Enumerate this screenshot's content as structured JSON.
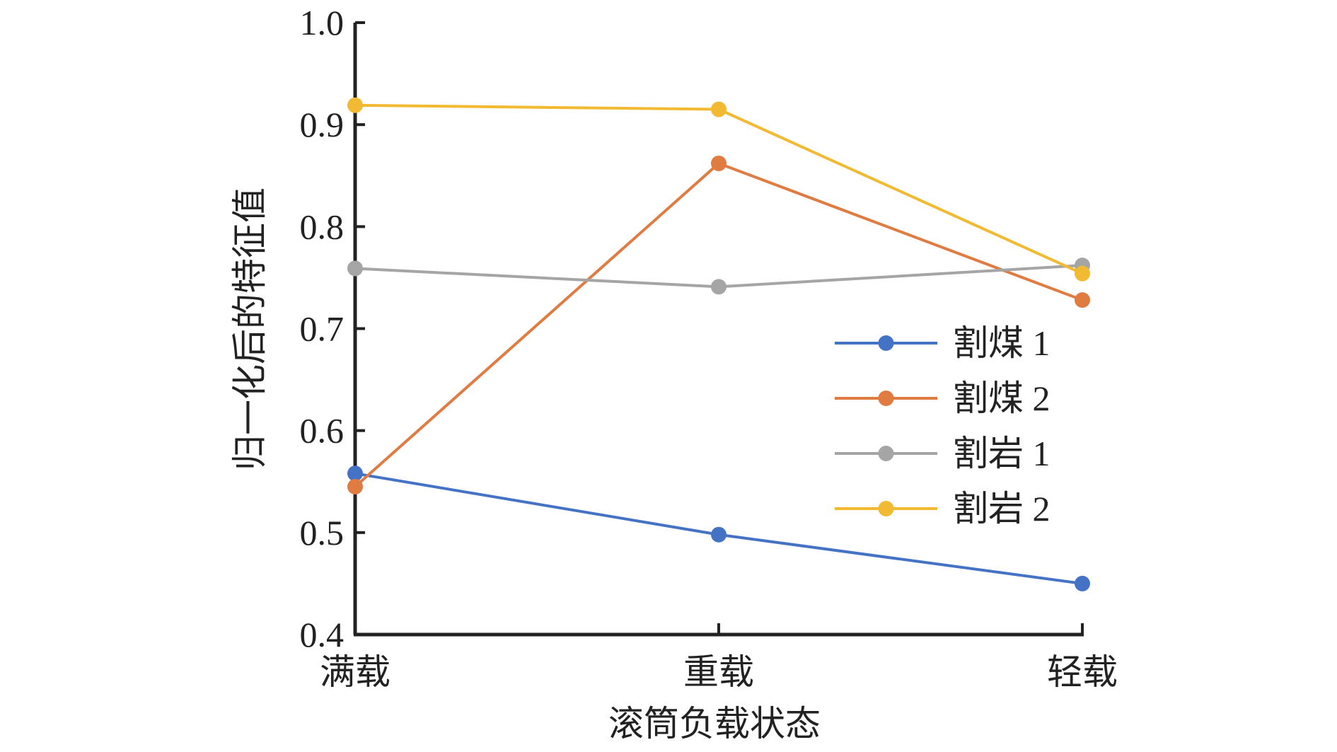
{
  "chart_data": {
    "type": "line",
    "categories": [
      "满载",
      "重载",
      "轻载"
    ],
    "series": [
      {
        "name": "割煤 1",
        "values": [
          0.558,
          0.498,
          0.45
        ],
        "color": "#4472C4"
      },
      {
        "name": "割煤 2",
        "values": [
          0.545,
          0.862,
          0.728
        ],
        "color": "#E07B41"
      },
      {
        "name": "割岩 1",
        "values": [
          0.759,
          0.741,
          0.762
        ],
        "color": "#A5A5A5"
      },
      {
        "name": "割岩 2",
        "values": [
          0.919,
          0.915,
          0.754
        ],
        "color": "#F2B933"
      }
    ],
    "xlabel": "滚筒负载状态",
    "ylabel": "归一化后的特征值",
    "ylim": [
      0.4,
      1.0
    ],
    "yticks": [
      "0.4",
      "0.5",
      "0.6",
      "0.7",
      "0.8",
      "0.9",
      "1.0"
    ],
    "grid": false,
    "legend_position": "right"
  }
}
